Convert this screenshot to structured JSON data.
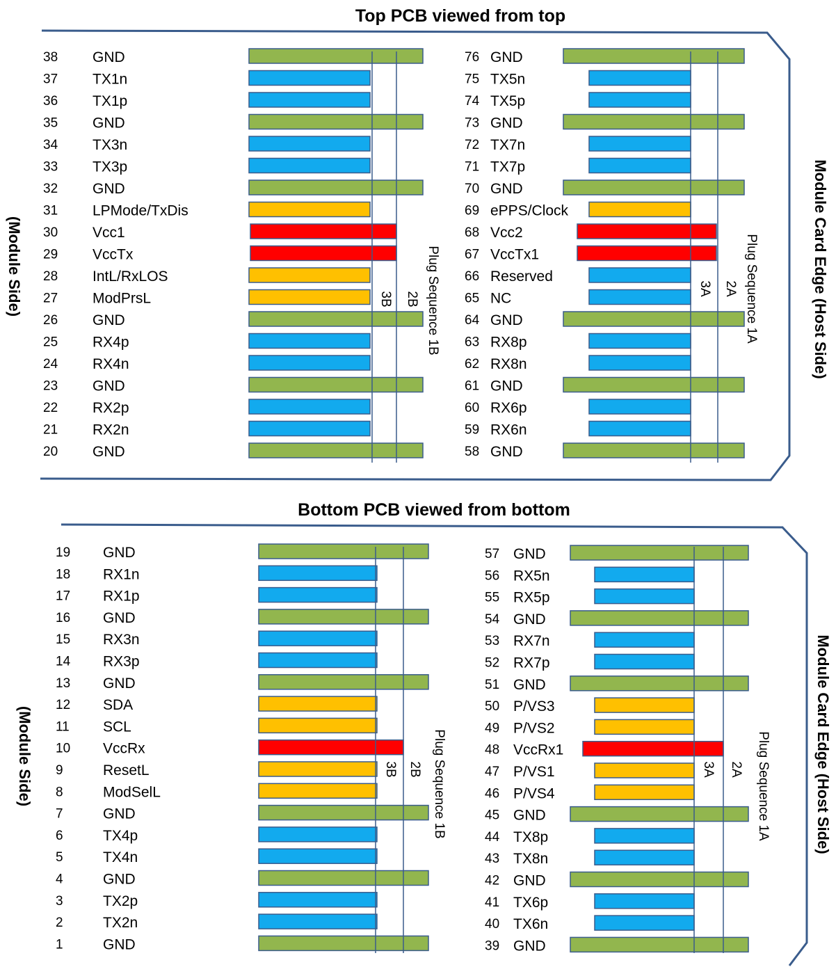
{
  "colors": {
    "gnd": "#92b64e",
    "signal": "#12aaee",
    "low_speed": "#ffc000",
    "power": "#ff0000",
    "outline": "#3a5c8c"
  },
  "labels": {
    "module_side": "(Module Side)",
    "host_side": "Module Card Edge (Host Side)",
    "seq_1b": "Plug Sequence 1B",
    "seq_1a": "Plug Sequence 1A",
    "seq_2b": "2B",
    "seq_3b": "3B",
    "seq_2a": "2A",
    "seq_3a": "3A"
  },
  "top": {
    "title": "Top PCB viewed from top",
    "left_pins": [
      {
        "num": "38",
        "name": "GND",
        "type": "gnd"
      },
      {
        "num": "37",
        "name": "TX1n",
        "type": "signal"
      },
      {
        "num": "36",
        "name": "TX1p",
        "type": "signal"
      },
      {
        "num": "35",
        "name": "GND",
        "type": "gnd"
      },
      {
        "num": "34",
        "name": "TX3n",
        "type": "signal"
      },
      {
        "num": "33",
        "name": "TX3p",
        "type": "signal"
      },
      {
        "num": "32",
        "name": "GND",
        "type": "gnd"
      },
      {
        "num": "31",
        "name": "LPMode/TxDis",
        "type": "low_speed"
      },
      {
        "num": "30",
        "name": "Vcc1",
        "type": "power"
      },
      {
        "num": "29",
        "name": "VccTx",
        "type": "power"
      },
      {
        "num": "28",
        "name": "IntL/RxLOS",
        "type": "low_speed"
      },
      {
        "num": "27",
        "name": "ModPrsL",
        "type": "low_speed"
      },
      {
        "num": "26",
        "name": "GND",
        "type": "gnd"
      },
      {
        "num": "25",
        "name": "RX4p",
        "type": "signal"
      },
      {
        "num": "24",
        "name": "RX4n",
        "type": "signal"
      },
      {
        "num": "23",
        "name": "GND",
        "type": "gnd"
      },
      {
        "num": "22",
        "name": "RX2p",
        "type": "signal"
      },
      {
        "num": "21",
        "name": "RX2n",
        "type": "signal"
      },
      {
        "num": "20",
        "name": "GND",
        "type": "gnd"
      }
    ],
    "right_pins": [
      {
        "num": "76",
        "name": "GND",
        "type": "gnd"
      },
      {
        "num": "75",
        "name": "TX5n",
        "type": "signal"
      },
      {
        "num": "74",
        "name": "TX5p",
        "type": "signal"
      },
      {
        "num": "73",
        "name": "GND",
        "type": "gnd"
      },
      {
        "num": "72",
        "name": "TX7n",
        "type": "signal"
      },
      {
        "num": "71",
        "name": "TX7p",
        "type": "signal"
      },
      {
        "num": "70",
        "name": "GND",
        "type": "gnd"
      },
      {
        "num": "69",
        "name": "ePPS/Clock",
        "type": "low_speed"
      },
      {
        "num": "68",
        "name": "Vcc2",
        "type": "power"
      },
      {
        "num": "67",
        "name": "VccTx1",
        "type": "power"
      },
      {
        "num": "66",
        "name": "Reserved",
        "type": "signal"
      },
      {
        "num": "65",
        "name": "NC",
        "type": "signal"
      },
      {
        "num": "64",
        "name": "GND",
        "type": "gnd"
      },
      {
        "num": "63",
        "name": "RX8p",
        "type": "signal"
      },
      {
        "num": "62",
        "name": "RX8n",
        "type": "signal"
      },
      {
        "num": "61",
        "name": "GND",
        "type": "gnd"
      },
      {
        "num": "60",
        "name": "RX6p",
        "type": "signal"
      },
      {
        "num": "59",
        "name": "RX6n",
        "type": "signal"
      },
      {
        "num": "58",
        "name": "GND",
        "type": "gnd"
      }
    ]
  },
  "bottom": {
    "title": "Bottom PCB viewed from bottom",
    "left_pins": [
      {
        "num": "19",
        "name": "GND",
        "type": "gnd"
      },
      {
        "num": "18",
        "name": "RX1n",
        "type": "signal"
      },
      {
        "num": "17",
        "name": "RX1p",
        "type": "signal"
      },
      {
        "num": "16",
        "name": "GND",
        "type": "gnd"
      },
      {
        "num": "15",
        "name": "RX3n",
        "type": "signal"
      },
      {
        "num": "14",
        "name": "RX3p",
        "type": "signal"
      },
      {
        "num": "13",
        "name": "GND",
        "type": "gnd"
      },
      {
        "num": "12",
        "name": "SDA",
        "type": "low_speed"
      },
      {
        "num": "11",
        "name": "SCL",
        "type": "low_speed"
      },
      {
        "num": "10",
        "name": "VccRx",
        "type": "power"
      },
      {
        "num": "9",
        "name": "ResetL",
        "type": "low_speed"
      },
      {
        "num": "8",
        "name": "ModSelL",
        "type": "low_speed"
      },
      {
        "num": "7",
        "name": "GND",
        "type": "gnd"
      },
      {
        "num": "6",
        "name": "TX4p",
        "type": "signal"
      },
      {
        "num": "5",
        "name": "TX4n",
        "type": "signal"
      },
      {
        "num": "4",
        "name": "GND",
        "type": "gnd"
      },
      {
        "num": "3",
        "name": "TX2p",
        "type": "signal"
      },
      {
        "num": "2",
        "name": "TX2n",
        "type": "signal"
      },
      {
        "num": "1",
        "name": "GND",
        "type": "gnd"
      }
    ],
    "right_pins": [
      {
        "num": "57",
        "name": "GND",
        "type": "gnd"
      },
      {
        "num": "56",
        "name": "RX5n",
        "type": "signal"
      },
      {
        "num": "55",
        "name": "RX5p",
        "type": "signal"
      },
      {
        "num": "54",
        "name": "GND",
        "type": "gnd"
      },
      {
        "num": "53",
        "name": "RX7n",
        "type": "signal"
      },
      {
        "num": "52",
        "name": "RX7p",
        "type": "signal"
      },
      {
        "num": "51",
        "name": "GND",
        "type": "gnd"
      },
      {
        "num": "50",
        "name": "P/VS3",
        "type": "low_speed"
      },
      {
        "num": "49",
        "name": "P/VS2",
        "type": "low_speed"
      },
      {
        "num": "48",
        "name": "VccRx1",
        "type": "power"
      },
      {
        "num": "47",
        "name": "P/VS1",
        "type": "low_speed"
      },
      {
        "num": "46",
        "name": "P/VS4",
        "type": "low_speed"
      },
      {
        "num": "45",
        "name": "GND",
        "type": "gnd"
      },
      {
        "num": "44",
        "name": "TX8p",
        "type": "signal"
      },
      {
        "num": "43",
        "name": "TX8n",
        "type": "signal"
      },
      {
        "num": "42",
        "name": "GND",
        "type": "gnd"
      },
      {
        "num": "41",
        "name": "TX6p",
        "type": "signal"
      },
      {
        "num": "40",
        "name": "TX6n",
        "type": "signal"
      },
      {
        "num": "39",
        "name": "GND",
        "type": "gnd"
      }
    ]
  }
}
